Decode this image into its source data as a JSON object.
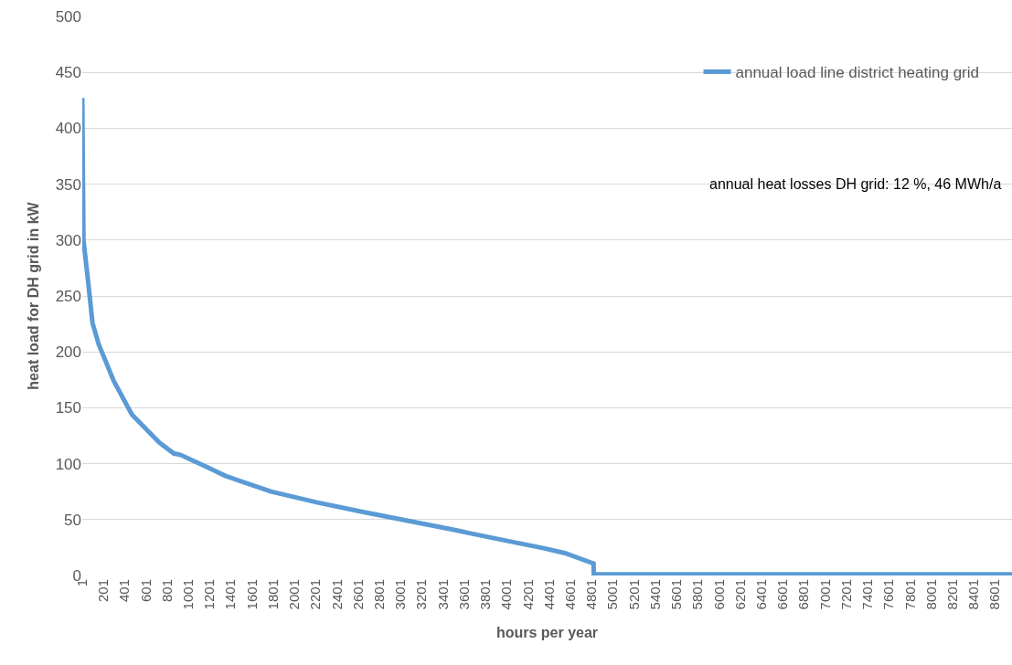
{
  "chart_data": {
    "type": "line",
    "xlabel": "hours per year",
    "ylabel": "heat load for DH grid in kW",
    "x": [
      1,
      12,
      55,
      97,
      155,
      297,
      468,
      725,
      865,
      924,
      1152,
      1352,
      1780,
      2208,
      2636,
      3064,
      3492,
      3919,
      4347,
      4547,
      4818,
      4819,
      8760
    ],
    "series": [
      {
        "name": "annual load line district heating grid",
        "color": "#5b9bd5",
        "values": [
          427,
          300,
          264,
          226,
          207,
          174,
          144,
          119,
          109,
          108,
          98,
          89,
          75,
          65.5,
          57,
          49,
          41,
          32.6,
          24.4,
          20,
          10.7,
          1,
          1
        ]
      }
    ],
    "xlim": [
      1,
      8760
    ],
    "xticks": [
      1,
      201,
      401,
      601,
      801,
      1001,
      1201,
      1401,
      1601,
      1801,
      2001,
      2201,
      2401,
      2601,
      2801,
      3001,
      3201,
      3401,
      3601,
      3801,
      4001,
      4201,
      4401,
      4601,
      4801,
      5001,
      5201,
      5401,
      5601,
      5801,
      6001,
      6201,
      6401,
      6601,
      6801,
      7001,
      7201,
      7401,
      7601,
      7801,
      8001,
      8201,
      8401,
      8601
    ],
    "ylim": [
      0,
      500
    ],
    "yticks": [
      0,
      50,
      100,
      150,
      200,
      250,
      300,
      350,
      400,
      450,
      500
    ],
    "grid": "y",
    "legend": "top right",
    "marker": "none",
    "line_style": "solid",
    "annotations": [
      "annual heat losses DH grid: 12 %, 46 MWh/a"
    ]
  }
}
